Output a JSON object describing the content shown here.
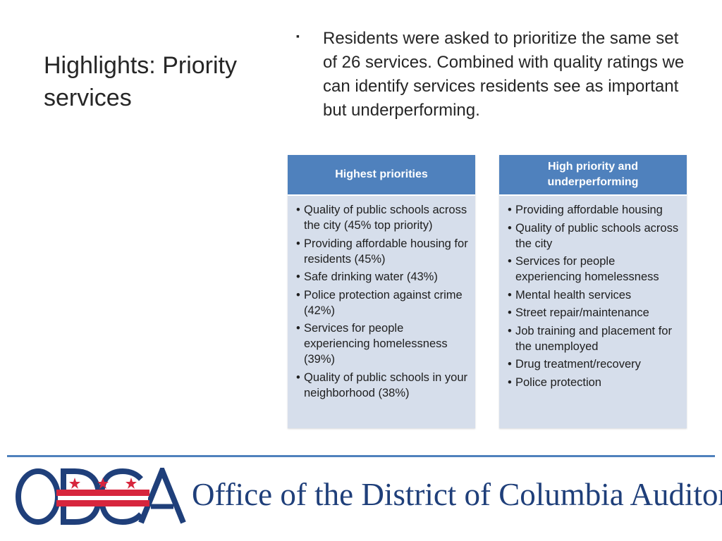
{
  "title": "Highlights: Priority services",
  "intro": {
    "bullet": "▪",
    "text": "Residents were asked to prioritize the same set of 26 services. Combined with quality ratings we can identify services residents see as important but underperforming."
  },
  "panels": [
    {
      "header": "Highest priorities",
      "items": [
        "Quality of public schools across the city (45% top priority)",
        "Providing affordable housing for residents (45%)",
        "Safe drinking water (43%)",
        "Police protection against crime (42%)",
        "Services for people experiencing homelessness (39%)",
        "Quality of public schools in your neighborhood (38%)"
      ]
    },
    {
      "header": "High priority and underperforming",
      "items": [
        "Providing affordable housing",
        "Quality of public schools across the city",
        "Services for people experiencing homelessness",
        "Mental health services",
        "Street repair/maintenance",
        "Job training and placement for the unemployed",
        "Drug treatment/recovery",
        "Police protection"
      ]
    }
  ],
  "list_bullet": "•",
  "footer": {
    "logo_text": "ODCA",
    "org_name": "Office of the District of Columbia Auditor"
  },
  "colors": {
    "accent": "#4f81bd",
    "panel_bg": "#d6deeb",
    "logo_blue": "#1f3f7a",
    "logo_red": "#d7263d"
  }
}
